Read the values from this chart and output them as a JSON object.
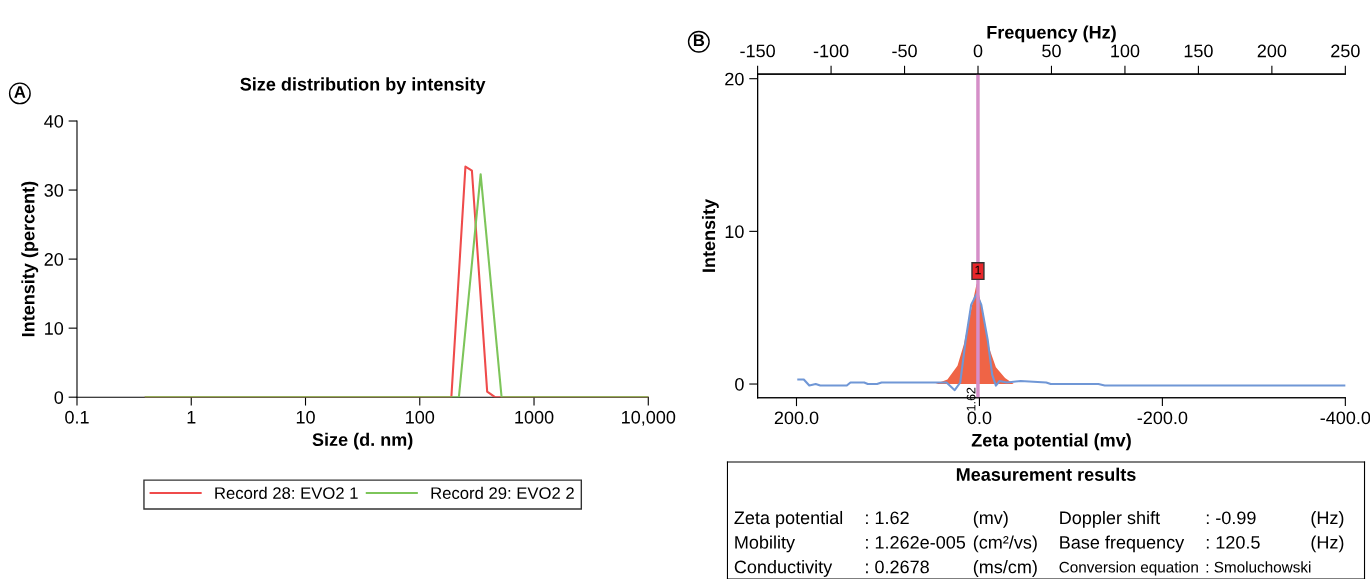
{
  "chart_data": [
    {
      "type": "line",
      "title": "Size distribution by intensity",
      "xlabel": "Size (d. nm)",
      "ylabel": "Intensity (percent)",
      "log": "x",
      "xlim": [
        0.1,
        10000
      ],
      "xticks": [
        0.1,
        1,
        10,
        100,
        1000,
        {
          "value": 10000,
          "label": "10,000"
        }
      ],
      "ylim": [
        0,
        40
      ],
      "yticks": [
        0,
        10,
        20,
        30,
        40
      ],
      "grid": false,
      "legend": "bottom",
      "marker": "none",
      "line_style": "solid",
      "annotations": [
        "A"
      ],
      "series": [
        {
          "name": "Record 28: EVO2 1",
          "color": "#ef4b4b",
          "x": [
            0.4,
            189,
            251,
            286,
            389,
            456,
            10000
          ],
          "values": [
            0,
            0,
            33.4,
            32.8,
            0.8,
            0,
            0
          ]
        },
        {
          "name": "Record 29: EVO2 2",
          "color": "#7dc55a",
          "x": [
            0.4,
            220,
            341,
            520,
            10000
          ],
          "values": [
            0,
            0,
            32.3,
            0,
            0
          ]
        }
      ]
    },
    {
      "type": "line",
      "xlabel": "Zeta potential (mv)",
      "ylabel": "Intensity",
      "x2label": "Frequency (Hz)",
      "xlim": [
        242.5,
        -400
      ],
      "xticks": [
        {
          "value": 200,
          "label": "200.0"
        },
        {
          "value": 0,
          "label": "0.0"
        },
        {
          "value": -200,
          "label": "-200.0"
        },
        {
          "value": -400,
          "label": "-400.0"
        }
      ],
      "x2lim": [
        -150,
        250
      ],
      "x2ticks": [
        -150,
        -100,
        -50,
        0,
        50,
        100,
        150,
        200,
        250
      ],
      "ylim": [
        -0.9,
        20.3
      ],
      "yticks": [
        0,
        10,
        20
      ],
      "grid": false,
      "marker": "none",
      "line_style": "solid",
      "annotations": [
        "B",
        {
          "text": "1",
          "x": 1.62,
          "y": 7.4
        }
      ],
      "ref_lines": [
        {
          "axis": "x",
          "value": 1.62,
          "label": "1.62",
          "color": "#d58fc8"
        }
      ],
      "series": [
        {
          "type": "area",
          "color": "#ef6446",
          "x": [
            48,
            35,
            24,
            17,
            10,
            3,
            -4,
            -11,
            -18,
            -28,
            -37.5
          ],
          "values": [
            0,
            0.3,
            1.2,
            2.6,
            4.6,
            6.6,
            4.6,
            2.3,
            1.1,
            0.4,
            0
          ]
        },
        {
          "type": "line",
          "color": "#7097d6",
          "x": [
            198,
            192,
            186,
            179,
            174,
            145,
            141,
            126,
            122,
            112,
            107,
            50,
            36,
            27,
            21,
            15,
            9,
            3,
            -2,
            -9,
            -14,
            -18,
            -22,
            -30,
            -45,
            -73,
            -78,
            -130,
            -137,
            -400
          ],
          "values": [
            0.3,
            0.3,
            -0.1,
            0,
            -0.1,
            -0.1,
            0.1,
            0.1,
            0,
            0,
            0.1,
            0.1,
            0.1,
            -0.4,
            0.1,
            2.9,
            5.2,
            5.9,
            5.2,
            2.9,
            0.6,
            -0.1,
            0.2,
            0.1,
            0.2,
            0.1,
            0,
            0,
            -0.1,
            -0.1
          ]
        }
      ]
    },
    {
      "type": "other",
      "title": "Measurement results",
      "annotations": [
        "Zeta potential",
        ": 1.62",
        "(mv)",
        "Doppler shift",
        ": -0.99",
        "(Hz)",
        "Mobility",
        ": 1.262e-005",
        "(cm²/vs)",
        "Base frequency",
        ": 120.5",
        "(Hz)",
        "Conductivity",
        ": 0.2678",
        "(ms/cm)",
        "Conversion equation",
        ": Smoluchowski"
      ]
    }
  ]
}
